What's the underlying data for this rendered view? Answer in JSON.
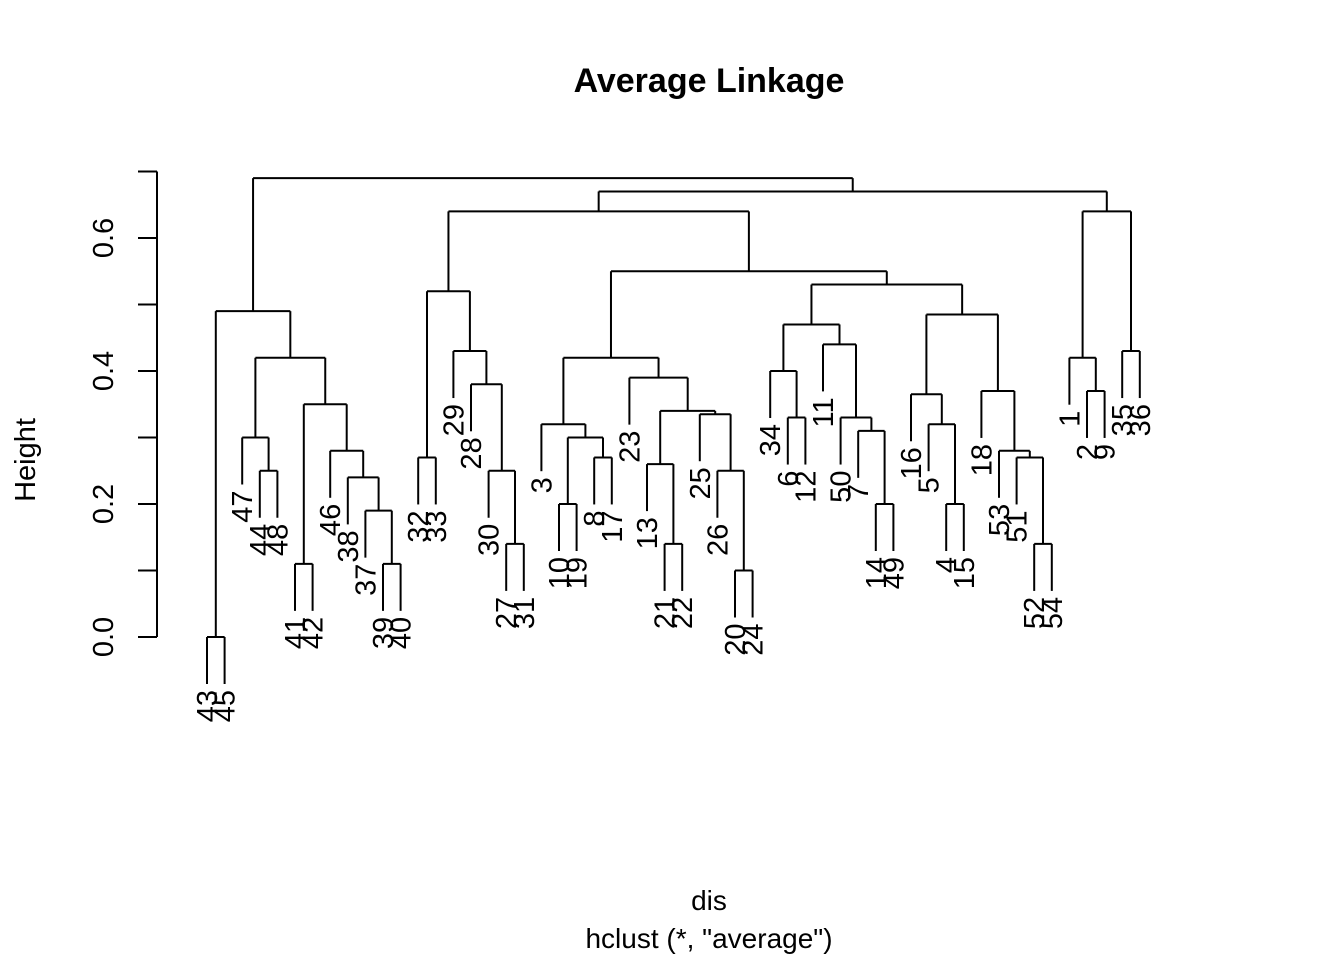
{
  "chart_data": {
    "type": "dendrogram",
    "title": "Average Linkage",
    "xlabel": "dis",
    "sublabel": "hclust (*, \"average\")",
    "ylabel": "Height",
    "ylim": [
      0,
      0.7
    ],
    "yticks": [
      0.0,
      0.2,
      0.4,
      0.6
    ],
    "ytick_labels": [
      "0.0",
      "0.2",
      "0.4",
      "0.6"
    ],
    "order": [
      43,
      45,
      47,
      44,
      48,
      41,
      42,
      46,
      38,
      37,
      39,
      40,
      32,
      33,
      29,
      28,
      30,
      27,
      31,
      3,
      10,
      19,
      8,
      17,
      23,
      13,
      21,
      22,
      25,
      26,
      20,
      24,
      34,
      6,
      12,
      11,
      50,
      7,
      14,
      49,
      16,
      5,
      4,
      15,
      18,
      53,
      51,
      52,
      54,
      1,
      2,
      9,
      35,
      36
    ],
    "merges": [
      [
        43,
        45,
        0.0
      ],
      [
        39,
        40,
        0.11
      ],
      [
        41,
        42,
        0.11
      ],
      [
        21,
        22,
        0.14
      ],
      [
        27,
        31,
        0.14
      ],
      [
        52,
        54,
        0.14
      ],
      [
        20,
        24,
        0.1
      ],
      [
        10,
        19,
        0.2
      ],
      [
        14,
        49,
        0.2
      ],
      [
        4,
        15,
        0.2
      ],
      [
        8,
        17,
        0.27
      ],
      [
        32,
        33,
        0.27
      ],
      [
        44,
        48,
        0.25
      ],
      [
        6,
        12,
        0.33
      ],
      [
        9,
        "-",
        0.0
      ],
      [
        2,
        9,
        0.37
      ],
      [
        35,
        36,
        0.43
      ],
      [
        1,
        2,
        0.42
      ],
      [
        37,
        39,
        0.19
      ],
      [
        38,
        37,
        0.24
      ],
      [
        46,
        38,
        0.28
      ],
      [
        41,
        46,
        0.35
      ],
      [
        47,
        44,
        0.3
      ],
      [
        47,
        41,
        0.42
      ],
      [
        43,
        47,
        0.49
      ],
      [
        30,
        27,
        0.25
      ],
      [
        28,
        30,
        0.38
      ],
      [
        29,
        28,
        0.43
      ],
      [
        32,
        29,
        0.52
      ],
      [
        10,
        8,
        0.3
      ],
      [
        3,
        10,
        0.32
      ],
      [
        13,
        21,
        0.26
      ],
      [
        26,
        20,
        0.25
      ],
      [
        25,
        26,
        0.33
      ],
      [
        13,
        25,
        0.34
      ],
      [
        23,
        13,
        0.39
      ],
      [
        3,
        23,
        0.42
      ],
      [
        34,
        6,
        0.4
      ],
      [
        7,
        14,
        0.31
      ],
      [
        50,
        7,
        0.33
      ],
      [
        11,
        50,
        0.44
      ],
      [
        34,
        11,
        0.47
      ],
      [
        5,
        4,
        0.32
      ],
      [
        16,
        5,
        0.36
      ],
      [
        51,
        52,
        0.27
      ],
      [
        53,
        51,
        0.28
      ],
      [
        18,
        53,
        0.37
      ],
      [
        16,
        18,
        0.48
      ],
      [
        34,
        16,
        0.53
      ],
      [
        3,
        34,
        0.55
      ],
      [
        32,
        3,
        0.64
      ],
      [
        1,
        35,
        0.64
      ],
      [
        32,
        1,
        0.67
      ],
      [
        43,
        32,
        0.69
      ]
    ]
  },
  "tree": {
    "height": 0.69,
    "children": [
      {
        "height": 0.49,
        "children": [
          {
            "height": 0.0,
            "children": [
              {
                "leaf": 43
              },
              {
                "leaf": 45
              }
            ]
          },
          {
            "height": 0.42,
            "children": [
              {
                "height": 0.3,
                "children": [
                  {
                    "leaf": 47
                  },
                  {
                    "height": 0.25,
                    "children": [
                      {
                        "leaf": 44
                      },
                      {
                        "leaf": 48
                      }
                    ]
                  }
                ]
              },
              {
                "height": 0.35,
                "children": [
                  {
                    "height": 0.11,
                    "children": [
                      {
                        "leaf": 41
                      },
                      {
                        "leaf": 42
                      }
                    ]
                  },
                  {
                    "height": 0.28,
                    "children": [
                      {
                        "leaf": 46
                      },
                      {
                        "height": 0.24,
                        "children": [
                          {
                            "leaf": 38
                          },
                          {
                            "height": 0.19,
                            "children": [
                              {
                                "leaf": 37
                              },
                              {
                                "height": 0.11,
                                "children": [
                                  {
                                    "leaf": 39
                                  },
                                  {
                                    "leaf": 40
                                  }
                                ]
                              }
                            ]
                          }
                        ]
                      }
                    ]
                  }
                ]
              }
            ]
          }
        ]
      },
      {
        "height": 0.67,
        "children": [
          {
            "height": 0.64,
            "children": [
              {
                "height": 0.52,
                "children": [
                  {
                    "height": 0.27,
                    "children": [
                      {
                        "leaf": 32
                      },
                      {
                        "leaf": 33
                      }
                    ]
                  },
                  {
                    "height": 0.43,
                    "children": [
                      {
                        "leaf": 29
                      },
                      {
                        "height": 0.38,
                        "children": [
                          {
                            "leaf": 28
                          },
                          {
                            "height": 0.25,
                            "children": [
                              {
                                "leaf": 30
                              },
                              {
                                "height": 0.14,
                                "children": [
                                  {
                                    "leaf": 27
                                  },
                                  {
                                    "leaf": 31
                                  }
                                ]
                              }
                            ]
                          }
                        ]
                      }
                    ]
                  }
                ]
              },
              {
                "height": 0.55,
                "children": [
                  {
                    "height": 0.42,
                    "children": [
                      {
                        "height": 0.32,
                        "children": [
                          {
                            "leaf": 3
                          },
                          {
                            "height": 0.3,
                            "children": [
                              {
                                "height": 0.2,
                                "children": [
                                  {
                                    "leaf": 10
                                  },
                                  {
                                    "leaf": 19
                                  }
                                ]
                              },
                              {
                                "height": 0.27,
                                "children": [
                                  {
                                    "leaf": 8
                                  },
                                  {
                                    "leaf": 17
                                  }
                                ]
                              }
                            ]
                          }
                        ]
                      },
                      {
                        "height": 0.39,
                        "children": [
                          {
                            "leaf": 23
                          },
                          {
                            "height": 0.34,
                            "children": [
                              {
                                "height": 0.26,
                                "children": [
                                  {
                                    "leaf": 13
                                  },
                                  {
                                    "height": 0.14,
                                    "children": [
                                      {
                                        "leaf": 21
                                      },
                                      {
                                        "leaf": 22
                                      }
                                    ]
                                  }
                                ]
                              },
                              {
                                "height": 0.335,
                                "children": [
                                  {
                                    "leaf": 25
                                  },
                                  {
                                    "height": 0.25,
                                    "children": [
                                      {
                                        "leaf": 26
                                      },
                                      {
                                        "height": 0.1,
                                        "children": [
                                          {
                                            "leaf": 20
                                          },
                                          {
                                            "leaf": 24
                                          }
                                        ]
                                      }
                                    ]
                                  }
                                ]
                              }
                            ]
                          }
                        ]
                      }
                    ]
                  },
                  {
                    "height": 0.53,
                    "children": [
                      {
                        "height": 0.47,
                        "children": [
                          {
                            "height": 0.4,
                            "children": [
                              {
                                "leaf": 34
                              },
                              {
                                "height": 0.33,
                                "children": [
                                  {
                                    "leaf": 6
                                  },
                                  {
                                    "leaf": 12
                                  }
                                ]
                              }
                            ]
                          },
                          {
                            "height": 0.44,
                            "children": [
                              {
                                "leaf": 11
                              },
                              {
                                "height": 0.33,
                                "children": [
                                  {
                                    "leaf": 50
                                  },
                                  {
                                    "height": 0.31,
                                    "children": [
                                      {
                                        "leaf": 7
                                      },
                                      {
                                        "height": 0.2,
                                        "children": [
                                          {
                                            "leaf": 14
                                          },
                                          {
                                            "leaf": 49
                                          }
                                        ]
                                      }
                                    ]
                                  }
                                ]
                              }
                            ]
                          }
                        ]
                      },
                      {
                        "height": 0.485,
                        "children": [
                          {
                            "height": 0.365,
                            "children": [
                              {
                                "leaf": 16
                              },
                              {
                                "height": 0.32,
                                "children": [
                                  {
                                    "leaf": 5
                                  },
                                  {
                                    "height": 0.2,
                                    "children": [
                                      {
                                        "leaf": 4
                                      },
                                      {
                                        "leaf": 15
                                      }
                                    ]
                                  }
                                ]
                              }
                            ]
                          },
                          {
                            "height": 0.37,
                            "children": [
                              {
                                "leaf": 18
                              },
                              {
                                "height": 0.28,
                                "children": [
                                  {
                                    "leaf": 53
                                  },
                                  {
                                    "height": 0.27,
                                    "children": [
                                      {
                                        "leaf": 51
                                      },
                                      {
                                        "height": 0.14,
                                        "children": [
                                          {
                                            "leaf": 52
                                          },
                                          {
                                            "leaf": 54
                                          }
                                        ]
                                      }
                                    ]
                                  }
                                ]
                              }
                            ]
                          }
                        ]
                      }
                    ]
                  }
                ]
              }
            ]
          },
          {
            "height": 0.64,
            "children": [
              {
                "height": 0.42,
                "children": [
                  {
                    "leaf": 1
                  },
                  {
                    "height": 0.37,
                    "children": [
                      {
                        "leaf": 2
                      },
                      {
                        "leaf": 9
                      }
                    ]
                  }
                ]
              },
              {
                "height": 0.43,
                "children": [
                  {
                    "leaf": 35
                  },
                  {
                    "leaf": 36
                  }
                ]
              }
            ]
          }
        ]
      }
    ]
  }
}
